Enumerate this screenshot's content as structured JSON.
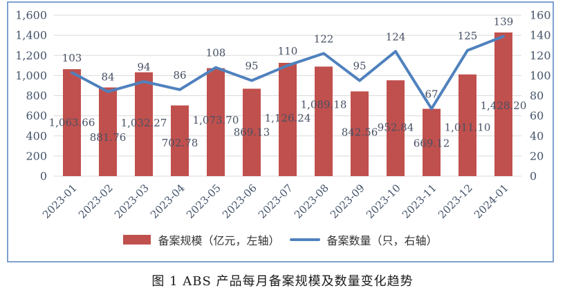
{
  "colors": {
    "bar": "#C0504D",
    "line": "#4F81BD",
    "grid": "#D9D9D9",
    "axis_text": "#44546A",
    "data_label_text": "#465064",
    "frame_border": "#7DA1D1",
    "legend_text": "#333333",
    "caption_text": "#1A1A1A"
  },
  "chart_data": {
    "type": "bar+line combo",
    "categories": [
      "2023-01",
      "2023-02",
      "2023-03",
      "2023-04",
      "2023-05",
      "2023-06",
      "2023-07",
      "2023-08",
      "2023-09",
      "2023-10",
      "2023-11",
      "2023-12",
      "2024-01"
    ],
    "series": [
      {
        "name": "备案规模（亿元，左轴）",
        "type": "bar",
        "axis": "left",
        "values": [
          1063.66,
          881.76,
          1032.27,
          702.78,
          1073.7,
          869.13,
          1126.24,
          1089.18,
          842.56,
          952.84,
          669.12,
          1011.1,
          1428.2
        ],
        "labels": [
          "1,063.66",
          "881.76",
          "1,032.27",
          "702.78",
          "1,073.70",
          "869.13",
          "1,126.24",
          "1,089.18",
          "842.56",
          "952.84",
          "669.12",
          "1,011.10",
          "1,428.20"
        ]
      },
      {
        "name": "备案数量（只，右轴）",
        "type": "line",
        "axis": "right",
        "values": [
          103,
          84,
          94,
          86,
          108,
          95,
          110,
          122,
          95,
          124,
          67,
          125,
          139
        ]
      }
    ],
    "left_axis": {
      "min": 0,
      "max": 1600,
      "step": 200,
      "ticks": [
        "1,600",
        "1,400",
        "1,200",
        "1,000",
        "800",
        "600",
        "400",
        "200",
        "0"
      ]
    },
    "right_axis": {
      "min": 0,
      "max": 160,
      "step": 20,
      "ticks": [
        "160",
        "140",
        "120",
        "100",
        "80",
        "60",
        "40",
        "20",
        "0"
      ]
    },
    "grid": true,
    "legend_position": "bottom",
    "bar_label_dy": [
      0,
      8,
      -2,
      3,
      -3,
      0,
      -2,
      -24,
      -2,
      -1,
      1,
      3,
      2
    ]
  },
  "legend": {
    "items": [
      {
        "label": "备案规模（亿元，左轴）",
        "swatch": "bar-swatch"
      },
      {
        "label": "备案数量（只，右轴）",
        "swatch": "line-swatch"
      }
    ]
  },
  "caption": "图 1  ABS 产品每月备案规模及数量变化趋势"
}
